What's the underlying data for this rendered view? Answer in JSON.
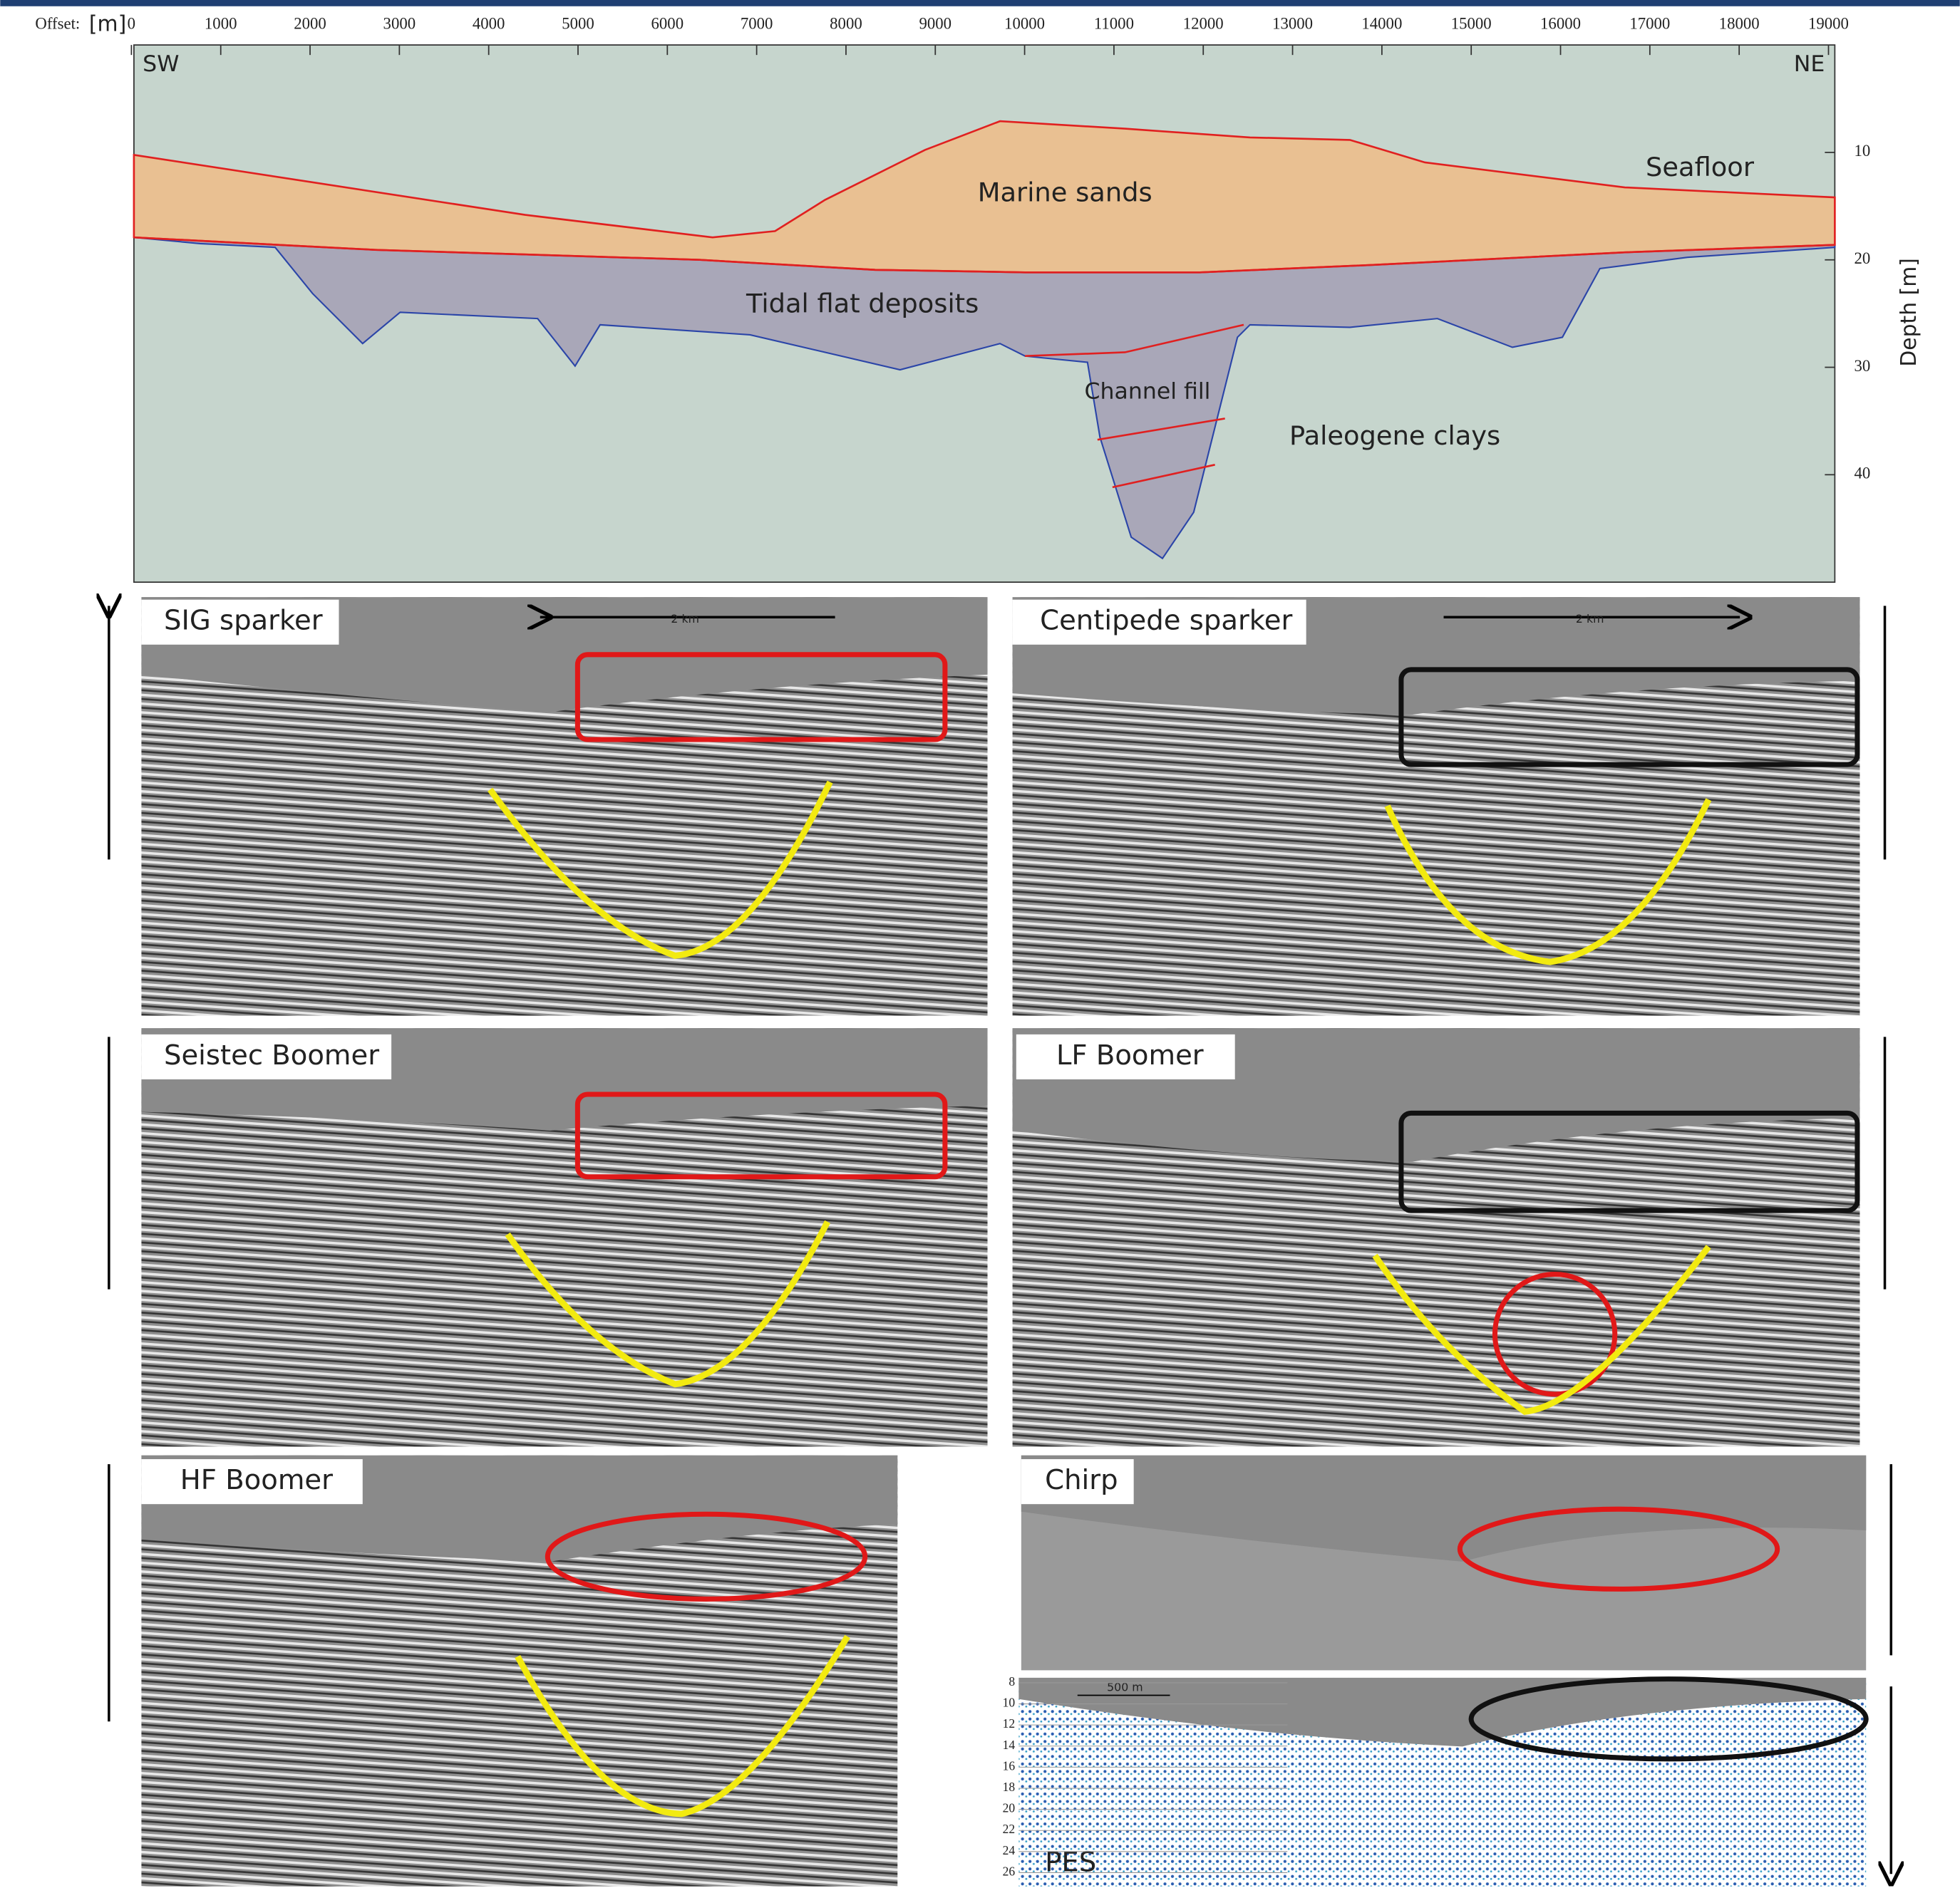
{
  "offset_axis": {
    "label": "Offset:",
    "unit": "[m]",
    "ticks": [
      0,
      1000,
      2000,
      3000,
      4000,
      5000,
      6000,
      7000,
      8000,
      9000,
      10000,
      11000,
      12000,
      13000,
      14000,
      15000,
      16000,
      17000,
      18000,
      19000
    ]
  },
  "depth_axis": {
    "label": "Depth [m]",
    "ticks": [
      10,
      20,
      30,
      40
    ]
  },
  "section": {
    "left_label": "SW",
    "right_label": "NE",
    "units": [
      "Marine sands",
      "Seafloor",
      "Tidal flat deposits",
      "Channel fill",
      "Paleogene clays"
    ]
  },
  "panels": [
    {
      "label": "SIG sparker",
      "scale": "2 km"
    },
    {
      "label": "Centipede sparker",
      "scale": "2 km"
    },
    {
      "label": "Seistec Boomer"
    },
    {
      "label": "LF Boomer"
    },
    {
      "label": "HF Boomer"
    },
    {
      "label": "Chirp"
    },
    {
      "label": "PES",
      "scale": "500 m",
      "depth_ticks": [
        8,
        10,
        12,
        14,
        16,
        18,
        20,
        22,
        24,
        26
      ]
    }
  ]
}
